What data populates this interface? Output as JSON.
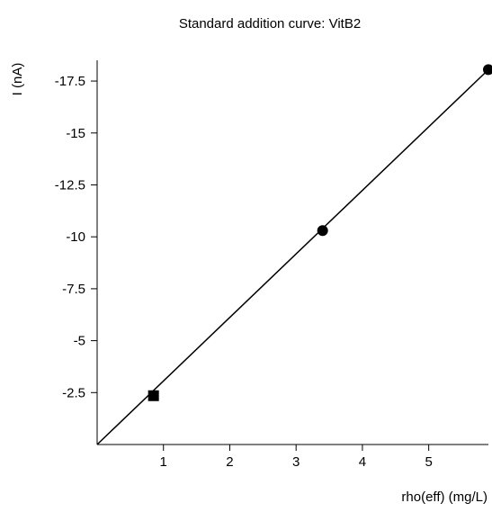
{
  "chart_data": {
    "type": "scatter",
    "title": "Standard addition curve: VitB2",
    "xlabel": "rho(eff) (mg/L)",
    "ylabel": "I (nA)",
    "xlim": [
      0,
      5.9
    ],
    "ylim": [
      0,
      -18.5
    ],
    "x_ticks": [
      {
        "value": 1,
        "label": "1"
      },
      {
        "value": 2,
        "label": "2"
      },
      {
        "value": 3,
        "label": "3"
      },
      {
        "value": 4,
        "label": "4"
      },
      {
        "value": 5,
        "label": "5"
      }
    ],
    "y_ticks": [
      {
        "value": -2.5,
        "label": "-2.5"
      },
      {
        "value": -5,
        "label": "-5"
      },
      {
        "value": -7.5,
        "label": "-7.5"
      },
      {
        "value": -10,
        "label": "-10"
      },
      {
        "value": -12.5,
        "label": "-12.5"
      },
      {
        "value": -15,
        "label": "-15"
      },
      {
        "value": -17.5,
        "label": "-17.5"
      }
    ],
    "grid": false,
    "series": [
      {
        "marker": "square",
        "points": [
          {
            "x": 0.85,
            "y": -2.35
          }
        ]
      },
      {
        "marker": "circle",
        "points": [
          {
            "x": 3.4,
            "y": -10.3
          },
          {
            "x": 5.9,
            "y": -18.05
          }
        ]
      }
    ],
    "fit_line": {
      "x": [
        0,
        5.9
      ],
      "y": [
        0,
        -18.05
      ]
    },
    "color": "#000000"
  }
}
